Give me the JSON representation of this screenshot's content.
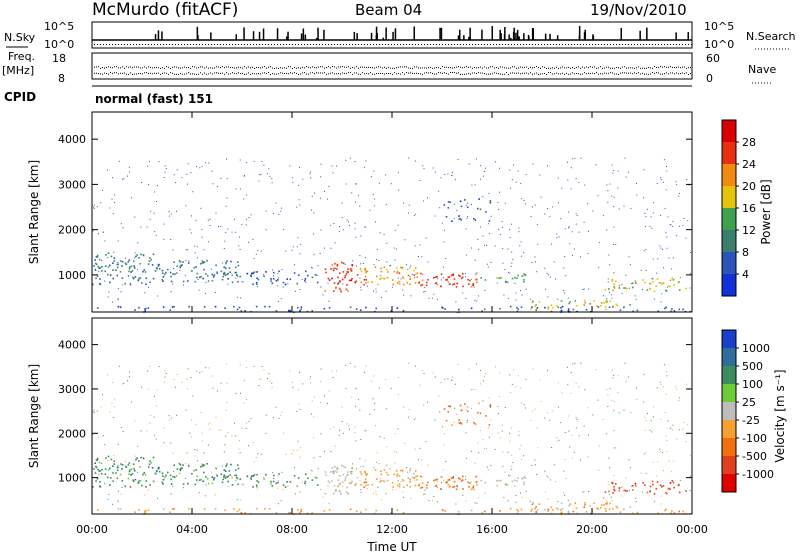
{
  "header": {
    "station": "McMurdo (fitACF)",
    "beam": "Beam 04",
    "date": "19/Nov/2010"
  },
  "panels": {
    "nsky": {
      "label": "N.Sky",
      "right_label": "N.Search",
      "left_ticks": [
        "10^5",
        "10^0"
      ],
      "right_ticks": [
        "10^5",
        "10^0"
      ]
    },
    "freq": {
      "label_line1": "Freq.",
      "label_line2": "[MHz]",
      "right_label": "Nave",
      "left_ticks": [
        "18",
        "8"
      ],
      "right_ticks": [
        "60",
        "0"
      ]
    },
    "cpid": {
      "label": "CPID",
      "value": "normal (fast) 151"
    }
  },
  "chart_data": [
    {
      "type": "heatmap",
      "name": "power",
      "ylabel": "Slant Range [km]",
      "y_ticks": [
        1000,
        2000,
        3000,
        4000
      ],
      "ylim": [
        180,
        4600
      ],
      "colorbar_label": "Power [dB]",
      "colorbar_ticks": [
        "4",
        "8",
        "12",
        "16",
        "20",
        "24",
        "28"
      ],
      "colors": [
        "#1030d8",
        "#2a55b8",
        "#3a7e70",
        "#3fa050",
        "#e3c40a",
        "#f08a10",
        "#e83010",
        "#d80000"
      ]
    },
    {
      "type": "heatmap",
      "name": "velocity",
      "ylabel": "Slant Range [km]",
      "y_ticks": [
        1000,
        2000,
        3000,
        4000
      ],
      "ylim": [
        180,
        4600
      ],
      "colorbar_label": "Velocity [m s⁻¹]",
      "colorbar_ticks": [
        "1000",
        "500",
        "100",
        "25",
        "-25",
        "-100",
        "-500",
        "-1000"
      ],
      "colors": [
        "#1a40c8",
        "#2f6e9a",
        "#3e8c5e",
        "#6ccc3a",
        "#bdbdbd",
        "#f5a030",
        "#f07010",
        "#e04020",
        "#e00000"
      ]
    }
  ],
  "xaxis": {
    "label": "Time UT",
    "ticks": [
      "00:00",
      "04:00",
      "08:00",
      "12:00",
      "16:00",
      "20:00",
      "00:00"
    ]
  }
}
